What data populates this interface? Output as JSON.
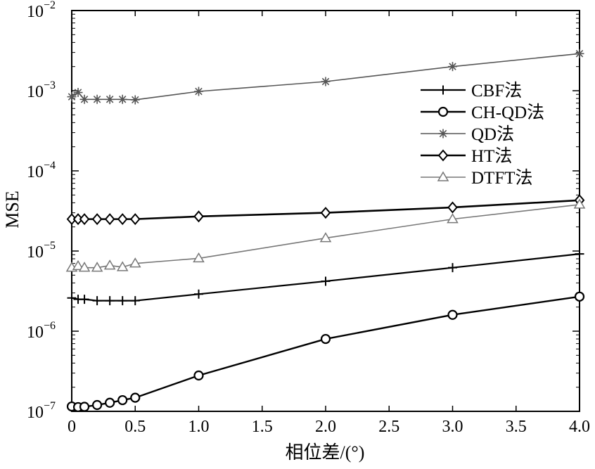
{
  "chart_data": {
    "type": "line",
    "xlabel": "相位差/(°)",
    "ylabel": "MSE",
    "yscale": "log",
    "xlim": [
      0,
      4.0
    ],
    "ylim": [
      1e-07,
      0.01
    ],
    "x_ticks": [
      0,
      0.5,
      1.0,
      1.5,
      2.0,
      2.5,
      3.0,
      3.5,
      4.0
    ],
    "x_tick_labels": [
      "0",
      "0.5",
      "1.0",
      "1.5",
      "2.0",
      "2.5",
      "3.0",
      "3.5",
      "4.0"
    ],
    "y_ticks": [
      {
        "value": 0.01,
        "base": "10",
        "exp": "−2"
      },
      {
        "value": 0.001,
        "base": "10",
        "exp": "−3"
      },
      {
        "value": 0.0001,
        "base": "10",
        "exp": "−4"
      },
      {
        "value": 1e-05,
        "base": "10",
        "exp": "−5"
      },
      {
        "value": 1e-06,
        "base": "10",
        "exp": "−6"
      },
      {
        "value": 1e-07,
        "base": "10",
        "exp": "−7"
      }
    ],
    "grid": false,
    "legend_position": "upper-right",
    "x": [
      0,
      0.05,
      0.1,
      0.2,
      0.3,
      0.4,
      0.5,
      1.0,
      2.0,
      3.0,
      4.0
    ],
    "series": [
      {
        "name": "CBF法",
        "color": "#000000",
        "marker": "plus",
        "values": [
          2.6e-06,
          2.5e-06,
          2.5e-06,
          2.4e-06,
          2.4e-06,
          2.4e-06,
          2.4e-06,
          2.9e-06,
          4.2e-06,
          6.2e-06,
          9.2e-06
        ]
      },
      {
        "name": "CH-QD法",
        "color": "#000000",
        "marker": "circle",
        "values": [
          1.15e-07,
          1.13e-07,
          1.14e-07,
          1.2e-07,
          1.28e-07,
          1.38e-07,
          1.48e-07,
          2.8e-07,
          8e-07,
          1.6e-06,
          2.7e-06
        ]
      },
      {
        "name": "QD法",
        "color": "#555555",
        "marker": "asterisk",
        "values": [
          0.00084,
          0.00095,
          0.00078,
          0.00078,
          0.00078,
          0.00078,
          0.00077,
          0.00098,
          0.0013,
          0.002,
          0.0029
        ]
      },
      {
        "name": "HT法",
        "color": "#000000",
        "marker": "diamond",
        "values": [
          2.5e-05,
          2.5e-05,
          2.5e-05,
          2.5e-05,
          2.5e-05,
          2.5e-05,
          2.5e-05,
          2.7e-05,
          3e-05,
          3.5e-05,
          4.3e-05
        ]
      },
      {
        "name": "DTFT法",
        "color": "#777777",
        "marker": "triangle",
        "values": [
          6.2e-06,
          6.5e-06,
          6.2e-06,
          6.2e-06,
          6.6e-06,
          6.3e-06,
          7e-06,
          8.1e-06,
          1.45e-05,
          2.5e-05,
          3.8e-05
        ]
      }
    ]
  }
}
